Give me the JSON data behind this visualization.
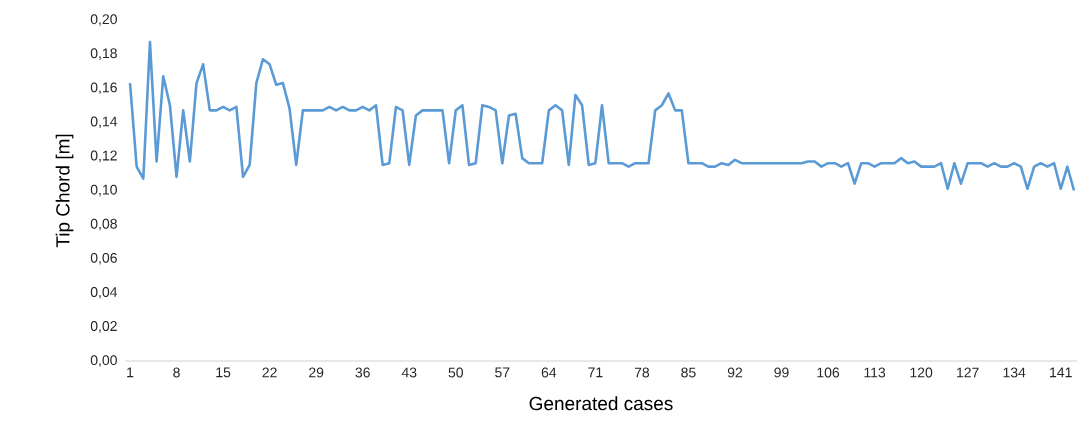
{
  "chart_data": {
    "type": "line",
    "xlabel": "Generated cases",
    "ylabel": "Tip Chord [m]",
    "color": "#5b9bd5",
    "categories": [
      "1",
      null,
      null,
      null,
      null,
      null,
      null,
      "8",
      null,
      null,
      null,
      null,
      null,
      null,
      "15",
      null,
      null,
      null,
      null,
      null,
      null,
      "22",
      null,
      null,
      null,
      null,
      null,
      null,
      "29",
      null,
      null,
      null,
      null,
      null,
      null,
      "36",
      null,
      null,
      null,
      null,
      null,
      null,
      "43",
      null,
      null,
      null,
      null,
      null,
      null,
      "50",
      null,
      null,
      null,
      null,
      null,
      null,
      "57",
      null,
      null,
      null,
      null,
      null,
      null,
      "64",
      null,
      null,
      null,
      null,
      null,
      null,
      "71",
      null,
      null,
      null,
      null,
      null,
      null,
      "78",
      null,
      null,
      null,
      null,
      null,
      null,
      "85",
      null,
      null,
      null,
      null,
      null,
      null,
      "92",
      null,
      null,
      null,
      null,
      null,
      null,
      "99",
      null,
      null,
      null,
      null,
      null,
      null,
      "106",
      null,
      null,
      null,
      null,
      null,
      null,
      "113",
      null,
      null,
      null,
      null,
      null,
      null,
      "120",
      null,
      null,
      null,
      null,
      null,
      null,
      "127",
      null,
      null,
      null,
      null,
      null,
      null,
      "134",
      null,
      null,
      null,
      null,
      null,
      null,
      "141",
      null,
      null
    ],
    "values": [
      0.163,
      0.114,
      0.107,
      0.187,
      0.117,
      0.167,
      0.15,
      0.108,
      0.147,
      0.117,
      0.163,
      0.174,
      0.147,
      0.147,
      0.149,
      0.147,
      0.149,
      0.108,
      0.115,
      0.163,
      0.177,
      0.174,
      0.162,
      0.163,
      0.148,
      0.115,
      0.147,
      0.147,
      0.147,
      0.147,
      0.149,
      0.147,
      0.149,
      0.147,
      0.147,
      0.149,
      0.147,
      0.15,
      0.115,
      0.116,
      0.149,
      0.147,
      0.115,
      0.144,
      0.147,
      0.147,
      0.147,
      0.147,
      0.116,
      0.147,
      0.15,
      0.115,
      0.116,
      0.15,
      0.149,
      0.147,
      0.116,
      0.144,
      0.145,
      0.119,
      0.116,
      0.116,
      0.116,
      0.147,
      0.15,
      0.147,
      0.115,
      0.156,
      0.15,
      0.115,
      0.116,
      0.15,
      0.116,
      0.116,
      0.116,
      0.114,
      0.116,
      0.116,
      0.116,
      0.147,
      0.15,
      0.157,
      0.147,
      0.147,
      0.116,
      0.116,
      0.116,
      0.114,
      0.114,
      0.116,
      0.115,
      0.118,
      0.116,
      0.116,
      0.116,
      0.116,
      0.116,
      0.116,
      0.116,
      0.116,
      0.116,
      0.116,
      0.117,
      0.117,
      0.114,
      0.116,
      0.116,
      0.114,
      0.116,
      0.104,
      0.116,
      0.116,
      0.114,
      0.116,
      0.116,
      0.116,
      0.119,
      0.116,
      0.117,
      0.114,
      0.114,
      0.114,
      0.116,
      0.101,
      0.116,
      0.104,
      0.116,
      0.116,
      0.116,
      0.114,
      0.116,
      0.114,
      0.114,
      0.116,
      0.114,
      0.101,
      0.114,
      0.116,
      0.114,
      0.116,
      0.101,
      0.114,
      0.1
    ],
    "ylim": [
      0,
      0.2
    ],
    "yticks": [
      {
        "value": 0,
        "label": "0,00"
      },
      {
        "value": 0.02,
        "label": "0,02"
      },
      {
        "value": 0.04,
        "label": "0,04"
      },
      {
        "value": 0.06,
        "label": "0,06"
      },
      {
        "value": 0.08,
        "label": "0,08"
      },
      {
        "value": 0.1,
        "label": "0,10"
      },
      {
        "value": 0.12,
        "label": "0,12"
      },
      {
        "value": 0.14,
        "label": "0,14"
      },
      {
        "value": 0.16,
        "label": "0,16"
      },
      {
        "value": 0.18,
        "label": "0,18"
      },
      {
        "value": 0.2,
        "label": "0,20"
      }
    ]
  }
}
